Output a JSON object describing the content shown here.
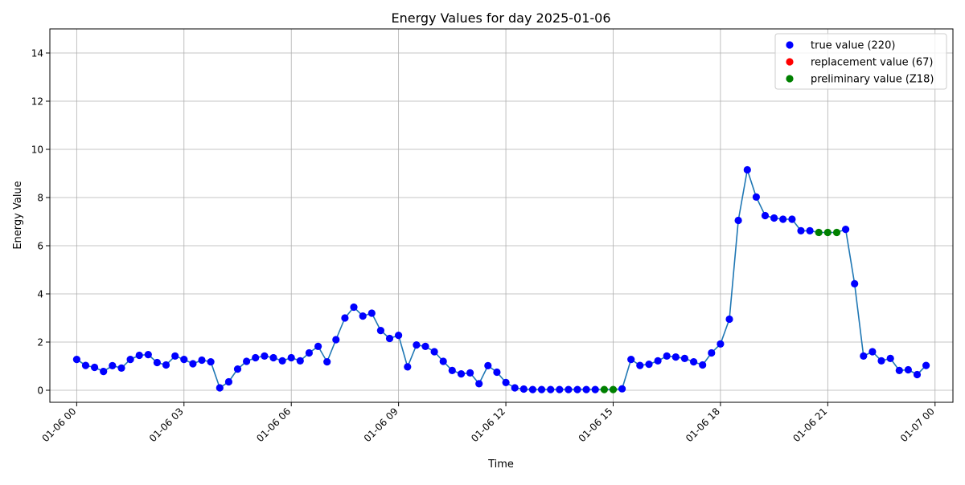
{
  "chart_data": {
    "type": "scatter",
    "title": "Energy Values for day 2025-01-06",
    "xlabel": "Time",
    "ylabel": "Energy Value",
    "xlim": [
      "2025-01-05T23:15",
      "2025-01-07T00:30"
    ],
    "ylim": [
      -0.5,
      15
    ],
    "grid": true,
    "legend_position": "top-right",
    "x_tick_labels": [
      "01-06 00",
      "01-06 03",
      "01-06 06",
      "01-06 09",
      "01-06 12",
      "01-06 15",
      "01-06 18",
      "01-06 21",
      "01-07 00"
    ],
    "x_ticks": [
      "2025-01-06T00:00",
      "2025-01-06T03:00",
      "2025-01-06T06:00",
      "2025-01-06T09:00",
      "2025-01-06T12:00",
      "2025-01-06T15:00",
      "2025-01-06T18:00",
      "2025-01-06T21:00",
      "2025-01-07T00:00"
    ],
    "y_ticks": [
      0,
      2,
      4,
      6,
      8,
      10,
      12,
      14
    ],
    "y_tick_labels": [
      "0",
      "2",
      "4",
      "6",
      "8",
      "10",
      "12",
      "14"
    ],
    "line_color": "#1f77b4",
    "legend": [
      {
        "label": "true value (220)",
        "color": "#0000ff"
      },
      {
        "label": "replacement value (67)",
        "color": "#ff0000"
      },
      {
        "label": "preliminary value (Z18)",
        "color": "#008000"
      }
    ],
    "x_start": "2025-01-06T00:00",
    "x_step_minutes": 15,
    "values": [
      1.28,
      1.03,
      0.95,
      0.78,
      1.02,
      0.92,
      1.28,
      1.45,
      1.48,
      1.15,
      1.05,
      1.42,
      1.28,
      1.1,
      1.25,
      1.18,
      0.1,
      0.35,
      0.88,
      1.2,
      1.35,
      1.42,
      1.35,
      1.22,
      1.35,
      1.22,
      1.55,
      1.82,
      1.18,
      2.1,
      3.0,
      3.45,
      3.08,
      3.2,
      2.48,
      2.15,
      2.28,
      0.97,
      1.88,
      1.82,
      1.6,
      1.2,
      0.82,
      0.68,
      0.72,
      0.27,
      1.02,
      0.75,
      0.32,
      0.1,
      0.05,
      0.03,
      0.03,
      0.03,
      0.03,
      0.03,
      0.03,
      0.03,
      0.03,
      0.03,
      0.03,
      0.06,
      1.28,
      1.03,
      1.08,
      1.22,
      1.42,
      1.38,
      1.32,
      1.18,
      1.05,
      1.55,
      1.92,
      2.95,
      7.05,
      9.15,
      8.02,
      7.25,
      7.15,
      7.1,
      7.1,
      6.62,
      6.62,
      6.55,
      6.55,
      6.55,
      6.68,
      4.42,
      1.42,
      1.6,
      1.22,
      1.32,
      0.82,
      0.85,
      0.65,
      1.03
    ],
    "status": [
      "true",
      "true",
      "true",
      "true",
      "true",
      "true",
      "true",
      "true",
      "true",
      "true",
      "true",
      "true",
      "true",
      "true",
      "true",
      "true",
      "true",
      "true",
      "true",
      "true",
      "true",
      "true",
      "true",
      "true",
      "true",
      "true",
      "true",
      "true",
      "true",
      "true",
      "true",
      "true",
      "true",
      "true",
      "true",
      "true",
      "true",
      "true",
      "true",
      "true",
      "true",
      "true",
      "true",
      "true",
      "true",
      "true",
      "true",
      "true",
      "true",
      "true",
      "true",
      "true",
      "true",
      "true",
      "true",
      "true",
      "true",
      "true",
      "true",
      "prelim",
      "prelim",
      "true",
      "true",
      "true",
      "true",
      "true",
      "true",
      "true",
      "true",
      "true",
      "true",
      "true",
      "true",
      "true",
      "true",
      "true",
      "true",
      "true",
      "true",
      "true",
      "true",
      "true",
      "true",
      "prelim",
      "prelim",
      "prelim",
      "true",
      "true",
      "true",
      "true",
      "true",
      "true",
      "true",
      "true",
      "true",
      "true"
    ]
  }
}
